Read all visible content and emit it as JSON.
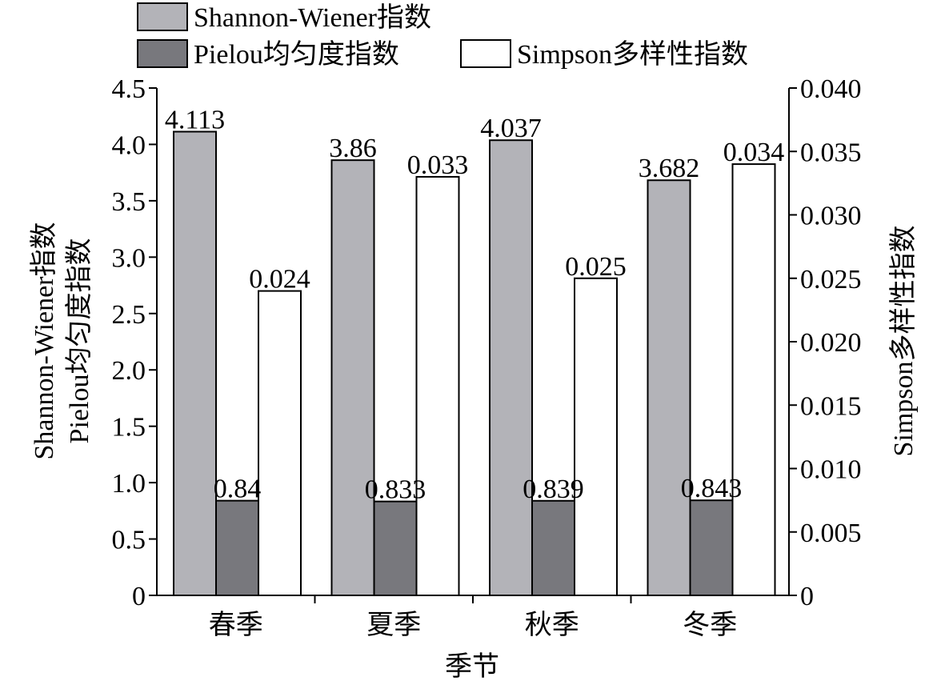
{
  "chart_data": {
    "type": "bar",
    "categories": [
      "春季",
      "夏季",
      "秋季",
      "冬季"
    ],
    "xlabel": "季节",
    "ylabel_left_lines": [
      "Shannon-Wiener指数",
      "Pielou均匀度指数"
    ],
    "ylabel_right": "Simpson多样性指数",
    "ylim_left": [
      0,
      4.5
    ],
    "ylim_right": [
      0,
      0.04
    ],
    "left_ticks": [
      0,
      0.5,
      1.0,
      1.5,
      2.0,
      2.5,
      3.0,
      3.5,
      4.0,
      4.5
    ],
    "left_tick_labels": [
      "0",
      "0.5",
      "1.0",
      "1.5",
      "2.0",
      "2.5",
      "3.0",
      "3.5",
      "4.0",
      "4.5"
    ],
    "right_ticks": [
      0,
      0.005,
      0.01,
      0.015,
      0.02,
      0.025,
      0.03,
      0.035,
      0.04
    ],
    "right_tick_labels": [
      "0",
      "0.005",
      "0.010",
      "0.015",
      "0.020",
      "0.025",
      "0.030",
      "0.035",
      "0.040"
    ],
    "legend_position": "top",
    "grid": false,
    "series": [
      {
        "name": "Shannon-Wiener指数",
        "axis": "left",
        "color": "#b3b3b8",
        "values": [
          4.113,
          3.86,
          4.037,
          3.682
        ],
        "labels": [
          "4.113",
          "3.86",
          "4.037",
          "3.682"
        ]
      },
      {
        "name": "Pielou均匀度指数",
        "axis": "left",
        "color": "#78787d",
        "values": [
          0.84,
          0.833,
          0.839,
          0.843
        ],
        "labels": [
          "0.84",
          "0.833",
          "0.839",
          "0.843"
        ]
      },
      {
        "name": "Simpson多样性指数",
        "axis": "right",
        "color": "#ffffff",
        "values": [
          0.024,
          0.033,
          0.025,
          0.034
        ],
        "labels": [
          "0.024",
          "0.033",
          "0.025",
          "0.034"
        ]
      }
    ]
  }
}
